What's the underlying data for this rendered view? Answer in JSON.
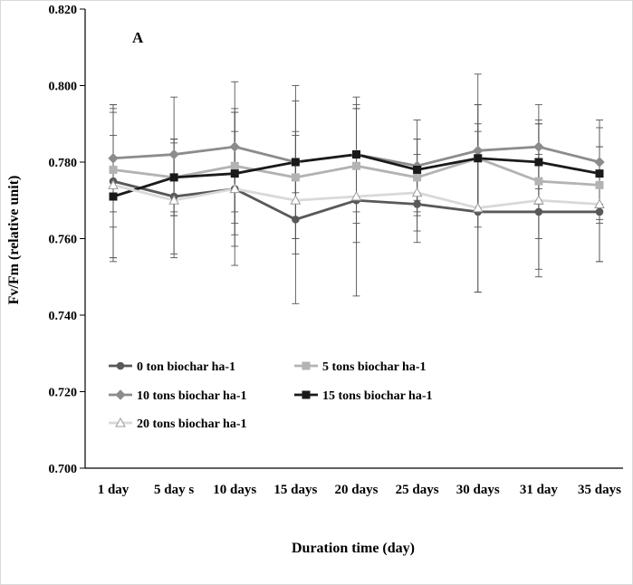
{
  "chart_data": {
    "type": "line",
    "panel_label": "A",
    "title": "",
    "xlabel": "Duration time (day)",
    "ylabel": "Fv/Fm (relative unit)",
    "ylim": [
      0.7,
      0.82
    ],
    "y_ticks": [
      "0.700",
      "0.720",
      "0.740",
      "0.760",
      "0.780",
      "0.800",
      "0.820"
    ],
    "categories": [
      "1 day",
      "5 day s",
      "10 days",
      "15 days",
      "20 days",
      "25 days",
      "30 days",
      "31 day",
      "35 days"
    ],
    "grid": false,
    "legend_position": "bottom-left inside plot",
    "error_bars": true,
    "series": [
      {
        "name": "0 ton biochar ha-1",
        "color": "#595959",
        "marker": "circle",
        "values": [
          0.775,
          0.771,
          0.773,
          0.765,
          0.77,
          0.769,
          0.767,
          0.767,
          0.767
        ],
        "errors": [
          0.02,
          0.015,
          0.02,
          0.022,
          0.025,
          0.01,
          0.021,
          0.015,
          0.013
        ]
      },
      {
        "name": "5 tons biochar ha-1",
        "color": "#b3b3b3",
        "marker": "square",
        "values": [
          0.778,
          0.776,
          0.779,
          0.776,
          0.779,
          0.776,
          0.781,
          0.775,
          0.774
        ],
        "errors": [
          0.015,
          0.01,
          0.015,
          0.02,
          0.015,
          0.01,
          0.014,
          0.015,
          0.01
        ]
      },
      {
        "name": "10 tons biochar ha-1",
        "color": "#8c8c8c",
        "marker": "diamond",
        "values": [
          0.781,
          0.782,
          0.784,
          0.78,
          0.782,
          0.779,
          0.783,
          0.784,
          0.78
        ],
        "errors": [
          0.014,
          0.015,
          0.017,
          0.02,
          0.015,
          0.012,
          0.02,
          0.011,
          0.011
        ]
      },
      {
        "name": "15 tons biochar ha-1",
        "color": "#1a1a1a",
        "marker": "square",
        "values": [
          0.771,
          0.776,
          0.777,
          0.78,
          0.782,
          0.778,
          0.781,
          0.78,
          0.777
        ],
        "errors": [
          0.016,
          0.01,
          0.016,
          0.008,
          0.012,
          0.008,
          0.014,
          0.011,
          0.012
        ]
      },
      {
        "name": "20 tons biochar ha-1",
        "color": "#d9d9d9",
        "marker": "triangle",
        "values": [
          0.774,
          0.77,
          0.773,
          0.77,
          0.771,
          0.772,
          0.768,
          0.77,
          0.769
        ],
        "errors": [
          0.02,
          0.015,
          0.015,
          0.01,
          0.012,
          0.01,
          0.022,
          0.02,
          0.015
        ]
      }
    ]
  }
}
